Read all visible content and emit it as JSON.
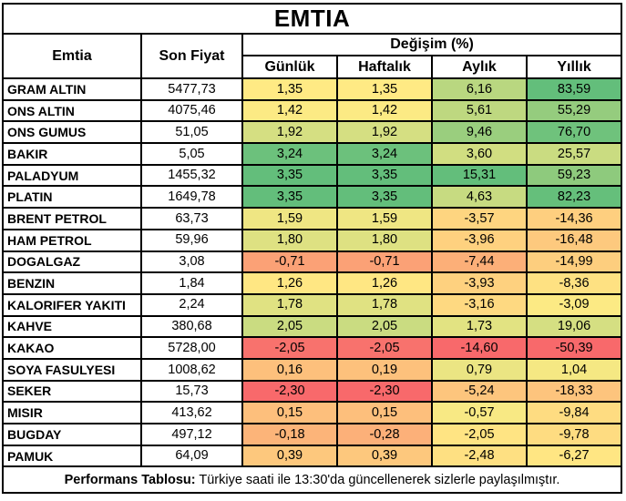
{
  "title": "EMTIA",
  "header": {
    "commodity": "Emtia",
    "last_price": "Son Fiyat",
    "change_group": "Değişim (%)",
    "periods": [
      "Günlük",
      "Haftalık",
      "Aylık",
      "Yıllık"
    ]
  },
  "footer": {
    "label": "Performans Tablosu:",
    "text": "Türkiye saati ile 13:30'da güncellenerek sizlerle paylaşılmıştır."
  },
  "colors": {
    "scale_min": "#F8696B",
    "scale_mid": "#FFEB84",
    "scale_max": "#63BE7B",
    "border": "#000000",
    "text": "#000000",
    "background": "#FFFFFF"
  },
  "chart_data": {
    "type": "table",
    "title": "EMTIA",
    "columns": [
      "Emtia",
      "Son Fiyat",
      "Günlük",
      "Haftalık",
      "Aylık",
      "Yıllık"
    ],
    "change_columns_unit": "%",
    "decimal_separator": ",",
    "color_scale": "per-column 3-color scale (min=red #F8696B, median=yellow #FFEB84, max=green #63BE7B)",
    "rows": [
      [
        "GRAM ALTIN",
        "5477,73",
        "1,35",
        "1,35",
        "6,16",
        "83,59"
      ],
      [
        "ONS ALTIN",
        "4075,46",
        "1,42",
        "1,42",
        "5,61",
        "55,29"
      ],
      [
        "ONS GUMUS",
        "51,05",
        "1,92",
        "1,92",
        "9,46",
        "76,70"
      ],
      [
        "BAKIR",
        "5,05",
        "3,24",
        "3,24",
        "3,60",
        "25,57"
      ],
      [
        "PALADYUM",
        "1455,32",
        "3,35",
        "3,35",
        "15,31",
        "59,23"
      ],
      [
        "PLATIN",
        "1649,78",
        "3,35",
        "3,35",
        "4,63",
        "82,23"
      ],
      [
        "BRENT PETROL",
        "63,73",
        "1,59",
        "1,59",
        "-3,57",
        "-14,36"
      ],
      [
        "HAM PETROL",
        "59,96",
        "1,80",
        "1,80",
        "-3,96",
        "-16,48"
      ],
      [
        "DOGALGAZ",
        "3,08",
        "-0,71",
        "-0,71",
        "-7,44",
        "-14,99"
      ],
      [
        "BENZIN",
        "1,84",
        "1,26",
        "1,26",
        "-3,93",
        "-8,36"
      ],
      [
        "KALORIFER YAKITI",
        "2,24",
        "1,78",
        "1,78",
        "-3,16",
        "-3,09"
      ],
      [
        "KAHVE",
        "380,68",
        "2,05",
        "2,05",
        "1,73",
        "19,06"
      ],
      [
        "KAKAO",
        "5728,00",
        "-2,05",
        "-2,05",
        "-14,60",
        "-50,39"
      ],
      [
        "SOYA FASULYESI",
        "1008,62",
        "0,16",
        "0,19",
        "0,79",
        "1,04"
      ],
      [
        "SEKER",
        "15,73",
        "-2,30",
        "-2,30",
        "-5,24",
        "-18,33"
      ],
      [
        "MISIR",
        "413,62",
        "0,15",
        "0,15",
        "-0,57",
        "-9,84"
      ],
      [
        "BUGDAY",
        "497,12",
        "-0,18",
        "-0,28",
        "-2,05",
        "-9,78"
      ],
      [
        "PAMUK",
        "64,09",
        "0,39",
        "0,39",
        "-2,48",
        "-6,27"
      ]
    ]
  }
}
